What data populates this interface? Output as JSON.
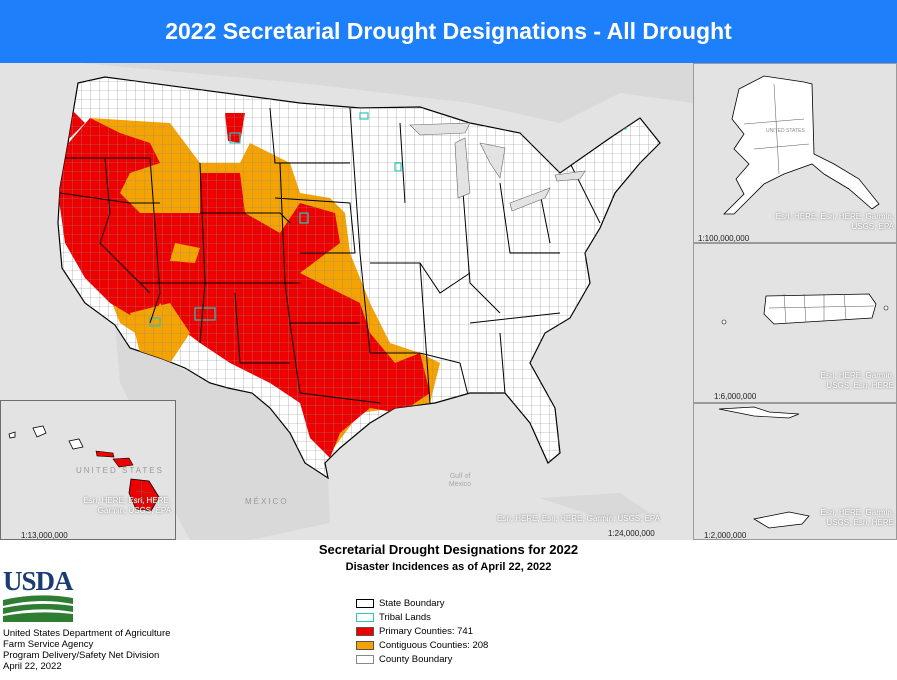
{
  "title": "2022 Secretarial Drought Designations - All Drought",
  "colors": {
    "banner": "#1e7ffa",
    "primary": "#ee0000",
    "contiguous": "#f5a300",
    "tribal": "#2ec4b6",
    "background": "#e3e3e3",
    "land": "#ffffff",
    "usda_blue": "#1a3c73",
    "usda_green": "#2e7d32"
  },
  "main_map": {
    "scale": "1:24,000,000",
    "attribution": "Esri, HERE, Esri, HERE, Garmin, USGS, EPA",
    "labels": {
      "mexico": "MÉXICO",
      "gulf": "Gulf of Mexico"
    }
  },
  "insets": {
    "alaska": {
      "scale": "1:100,000,000",
      "attribution": "Esri, HERE, Esri, HERE, Garmin, USGS, EPA",
      "label": "UNITED STATES"
    },
    "puerto_rico": {
      "scale": "1:6,000,000",
      "attribution": "Esri, HERE, Garmin, USGS, Esri, HERE"
    },
    "virgin_islands": {
      "scale": "1:2,000,000",
      "attribution": "Esri, HERE, Garmin, USGS, Esri, HERE"
    },
    "hawaii": {
      "scale": "1:13,000,000",
      "attribution": "Esri, HERE, Esri, HERE, Garmin, USGS, EPA",
      "label": "UNITED STATES"
    }
  },
  "legend": {
    "title": "Secretarial Drought Designations for 2022",
    "subtitle": "Disaster Incidences as of April 22, 2022",
    "items": [
      {
        "label": "State Boundary",
        "fill": "#ffffff",
        "stroke": "#000000"
      },
      {
        "label": "Tribal Lands",
        "fill": "#ffffff",
        "stroke": "#2ec4b6"
      },
      {
        "label": "Primary Counties: 741",
        "fill": "#ee0000",
        "stroke": "#555555"
      },
      {
        "label": "Contiguous Counties: 208",
        "fill": "#f5a300",
        "stroke": "#555555"
      },
      {
        "label": "County Boundary",
        "fill": "#ffffff",
        "stroke": "#888888"
      }
    ]
  },
  "agency": {
    "logo_text": "USDA",
    "lines": [
      "United States Department of Agriculture",
      "Farm Service Agency",
      "Program Delivery/Safety Net Division",
      "April 22, 2022"
    ]
  }
}
